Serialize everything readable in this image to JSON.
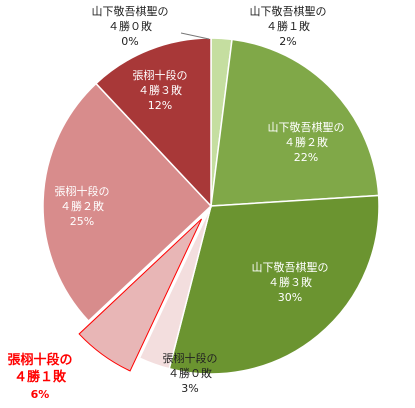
{
  "chart_data": {
    "type": "pie",
    "start_angle_deg": 0,
    "direction": "clockwise",
    "slices": [
      {
        "label": [
          "山下敬吾棋聖の",
          "４勝０敗"
        ],
        "value": 0,
        "pct": "0%",
        "color": "#c5dea0"
      },
      {
        "label": [
          "山下敬吾棋聖の",
          "４勝１敗"
        ],
        "value": 2,
        "pct": "2%",
        "color": "#c5dea0"
      },
      {
        "label": [
          "山下敬吾棋聖の",
          "４勝２敗"
        ],
        "value": 22,
        "pct": "22%",
        "color": "#80a848"
      },
      {
        "label": [
          "山下敬吾棋聖の",
          "４勝３敗"
        ],
        "value": 30,
        "pct": "30%",
        "color": "#6b9430"
      },
      {
        "label": [
          "張栩十段の",
          "４勝０敗"
        ],
        "value": 3,
        "pct": "3%",
        "color": "#f3dede"
      },
      {
        "label": [
          "張栩十段の",
          "４勝１敗"
        ],
        "value": 6,
        "pct": "6%",
        "color": "#e8b6b6",
        "exploded": true,
        "highlight_color": "#ff0000"
      },
      {
        "label": [
          "張栩十段の",
          "４勝２敗"
        ],
        "value": 25,
        "pct": "25%",
        "color": "#d88c8c"
      },
      {
        "label": [
          "張栩十段の",
          "４勝３敗"
        ],
        "value": 12,
        "pct": "12%",
        "color": "#a83838"
      }
    ],
    "legend": "none",
    "title": ""
  }
}
